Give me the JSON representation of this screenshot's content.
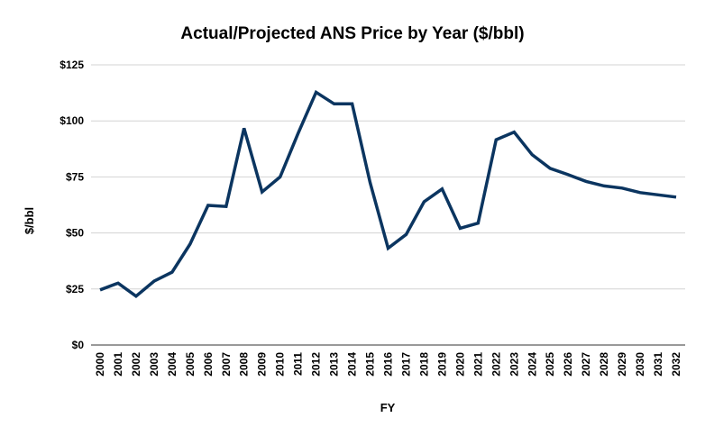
{
  "chart_data": {
    "type": "line",
    "title": "Actual/Projected ANS Price by Year ($/bbl)",
    "xlabel": "FY",
    "ylabel": "$/bbl",
    "ylim": [
      0,
      125
    ],
    "yticks": [
      0,
      25,
      50,
      75,
      100,
      125
    ],
    "ytick_labels": [
      "$0",
      "$25",
      "$50",
      "$75",
      "$100",
      "$125"
    ],
    "grid": true,
    "legend": "none",
    "line_color": "#0b3560",
    "categories": [
      "2000",
      "2001",
      "2002",
      "2003",
      "2004",
      "2005",
      "2006",
      "2007",
      "2008",
      "2009",
      "2010",
      "2011",
      "2012",
      "2013",
      "2014",
      "2015",
      "2016",
      "2017",
      "2018",
      "2019",
      "2020",
      "2021",
      "2022",
      "2023",
      "2024",
      "2025",
      "2026",
      "2027",
      "2028",
      "2029",
      "2030",
      "2031",
      "2032"
    ],
    "series": [
      {
        "values": [
          24.6,
          27.6,
          21.8,
          28.5,
          32.5,
          45.0,
          62.3,
          61.8,
          96.7,
          68.3,
          75.0,
          94.5,
          112.8,
          107.6,
          107.6,
          72.5,
          43.2,
          49.3,
          63.9,
          69.6,
          52.1,
          54.4,
          91.6,
          95.0,
          84.9,
          78.8,
          76.0,
          73.0,
          71.0,
          70.0,
          68.0,
          67.0,
          66.0
        ]
      }
    ]
  }
}
